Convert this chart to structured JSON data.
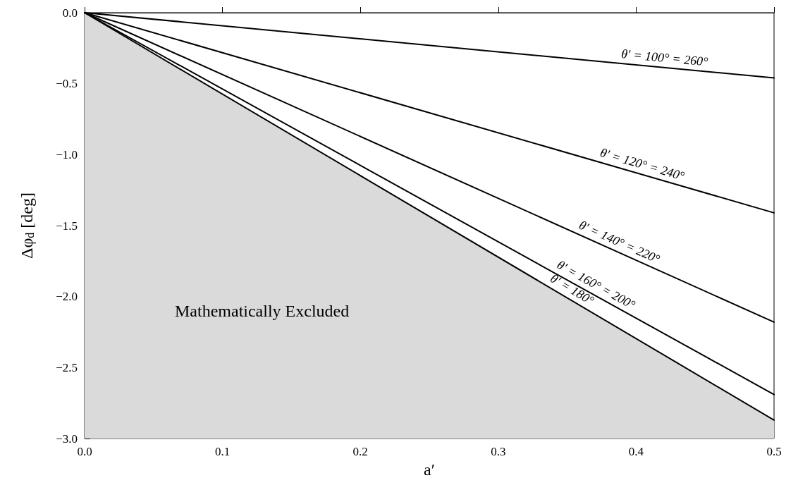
{
  "chart_data": {
    "type": "line",
    "xlabel": "a′",
    "ylabel": "Δφ$_{d}$ [deg]",
    "xlim": [
      0,
      0.5
    ],
    "ylim": [
      -3,
      0
    ],
    "xticks": [
      {
        "value": 0,
        "label": "0.0"
      },
      {
        "value": 0.1,
        "label": "0.1"
      },
      {
        "value": 0.2,
        "label": "0.2"
      },
      {
        "value": 0.3,
        "label": "0.3"
      },
      {
        "value": 0.4,
        "label": "0.4"
      },
      {
        "value": 0.5,
        "label": "0.5"
      }
    ],
    "yticks": [
      {
        "value": -3,
        "label": "−3.0"
      },
      {
        "value": -2.5,
        "label": "−2.5"
      },
      {
        "value": -2,
        "label": "−2.0"
      },
      {
        "value": -1.5,
        "label": "−1.5"
      },
      {
        "value": -1,
        "label": "−1.0"
      },
      {
        "value": -0.5,
        "label": "−0.5"
      },
      {
        "value": 0,
        "label": "0.0"
      }
    ],
    "grid": false,
    "legend": false,
    "marker": "none",
    "line_style": "solid",
    "x": [
      0,
      0.5
    ],
    "series": [
      {
        "name": "θ′ = 100° = 260°",
        "color": "#000000",
        "values": [
          0,
          -0.46
        ]
      },
      {
        "name": "θ′ = 120° = 240°",
        "color": "#000000",
        "values": [
          0,
          -1.41
        ]
      },
      {
        "name": "θ′ = 140° = 220°",
        "color": "#000000",
        "values": [
          0,
          -2.18
        ]
      },
      {
        "name": "θ′ = 160° = 200°",
        "color": "#000000",
        "values": [
          0,
          -2.69
        ]
      },
      {
        "name": "θ′ = 180°",
        "color": "#000000",
        "values": [
          0,
          -2.87
        ],
        "lower": [
          -3,
          -3
        ],
        "upper": [
          0,
          -2.87
        ]
      }
    ],
    "annotations": [
      "Mathematically Excluded"
    ]
  }
}
